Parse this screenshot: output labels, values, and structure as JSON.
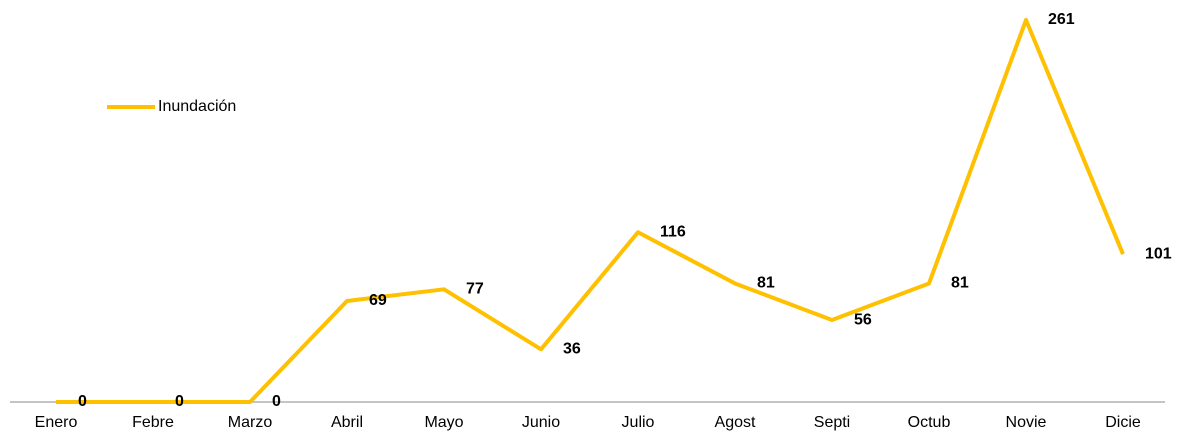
{
  "chart_data": {
    "type": "line",
    "categories": [
      "Enero",
      "Febre",
      "Marzo",
      "Abril",
      "Mayo",
      "Junio",
      "Julio",
      "Agost",
      "Septi",
      "Octub",
      "Novie",
      "Dicie"
    ],
    "series": [
      {
        "name": "Inundación",
        "color": "#ffc000",
        "values": [
          0,
          0,
          0,
          69,
          77,
          36,
          116,
          81,
          56,
          81,
          261,
          101
        ]
      }
    ],
    "legend": "upper left"
  }
}
